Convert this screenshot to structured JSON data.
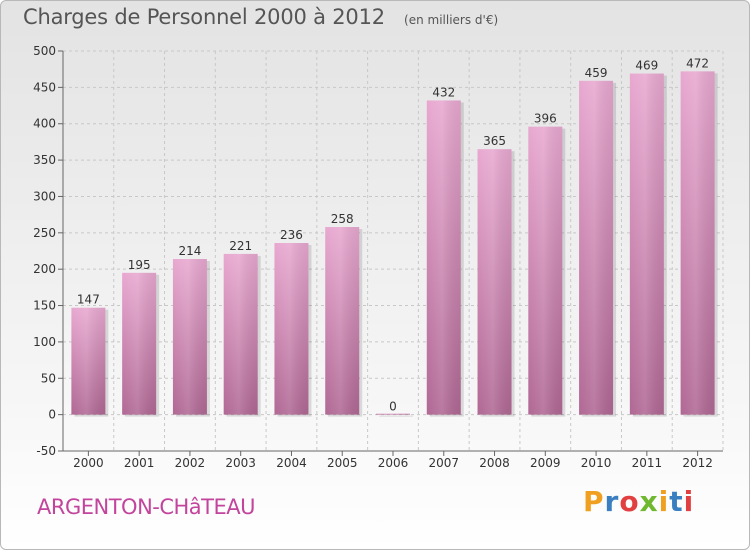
{
  "header": {
    "title": "Charges de Personnel 2000 à 2012",
    "subtitle": "(en milliers d'€)"
  },
  "footer": {
    "place": "ARGENTON-CHâTEAU",
    "logo": "Proxiti"
  },
  "colors": {
    "bar": "#c46fa5",
    "bar_light": "#e8a8d0",
    "place_text": "#c2449c",
    "logo_letters": [
      "#f0a020",
      "#3a7fc0",
      "#e24040",
      "#6fb830",
      "#f0a020",
      "#3a7fc0",
      "#e24040"
    ]
  },
  "chart_data": {
    "type": "bar",
    "title": "Charges de Personnel 2000 à 2012",
    "subtitle": "(en milliers d'€)",
    "categories": [
      "2000",
      "2001",
      "2002",
      "2003",
      "2004",
      "2005",
      "2006",
      "2007",
      "2008",
      "2009",
      "2010",
      "2011",
      "2012"
    ],
    "values": [
      147,
      195,
      214,
      221,
      236,
      258,
      0,
      432,
      365,
      396,
      459,
      469,
      472
    ],
    "data_labels": [
      "147",
      "195",
      "214",
      "221",
      "236",
      "258",
      "0",
      "432",
      "365",
      "396",
      "459",
      "469",
      "472"
    ],
    "ylim": [
      -50,
      500
    ],
    "yticks": [
      -50,
      0,
      50,
      100,
      150,
      200,
      250,
      300,
      350,
      400,
      450,
      500
    ],
    "grid": "horizontal dashed",
    "legend": "none"
  }
}
